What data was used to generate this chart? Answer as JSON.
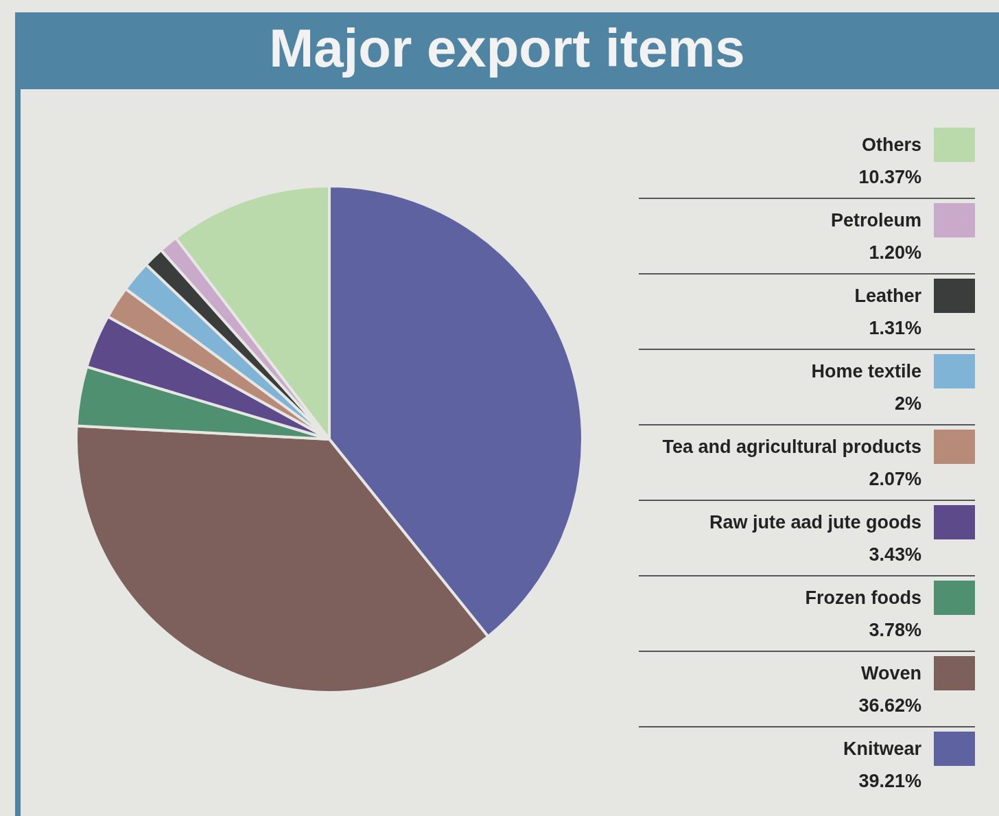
{
  "chart_data": {
    "type": "pie",
    "title": "Major export items",
    "categories": [
      "Knitwear",
      "Woven",
      "Frozen foods",
      "Raw jute aad jute goods",
      "Tea and agricultural products",
      "Home textile",
      "Leather",
      "Petroleum",
      "Others"
    ],
    "values": [
      39.21,
      36.62,
      3.78,
      3.43,
      2.07,
      2,
      1.31,
      1.2,
      10.37
    ],
    "value_labels": [
      "39.21%",
      "36.62%",
      "3.78%",
      "3.43%",
      "2.07%",
      "2%",
      "1.31%",
      "1.20%",
      "10.37%"
    ],
    "colors": [
      "#5f62a0",
      "#7d605c",
      "#4f9070",
      "#5d4a8a",
      "#b88a78",
      "#80b4d6",
      "#3a3d3c",
      "#caaacb",
      "#bbdaab"
    ],
    "legend": "right"
  }
}
